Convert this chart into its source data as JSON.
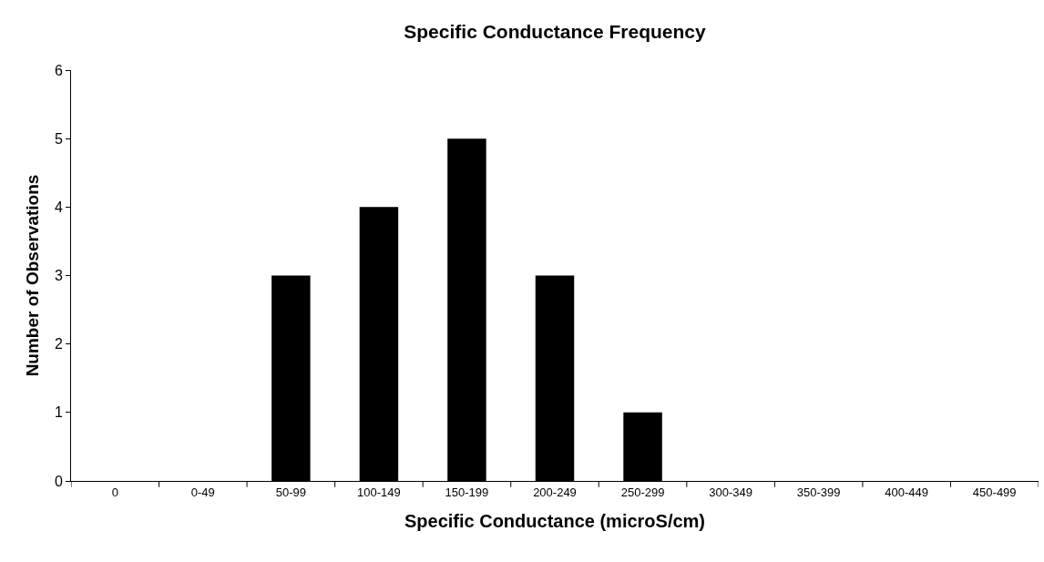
{
  "chart_data": {
    "type": "bar",
    "title": "Specific Conductance Frequency",
    "xlabel": "Specific Conductance (microS/cm)",
    "ylabel": "Number of Observations",
    "categories": [
      "0",
      "0-49",
      "50-99",
      "100-149",
      "150-199",
      "200-249",
      "250-299",
      "300-349",
      "350-399",
      "400-449",
      "450-499"
    ],
    "values": [
      0,
      0,
      3,
      4,
      5,
      3,
      1,
      0,
      0,
      0,
      0
    ],
    "color": "#000000",
    "ylim": [
      0,
      6
    ],
    "yticks": [
      0,
      1,
      2,
      3,
      4,
      5,
      6
    ]
  }
}
